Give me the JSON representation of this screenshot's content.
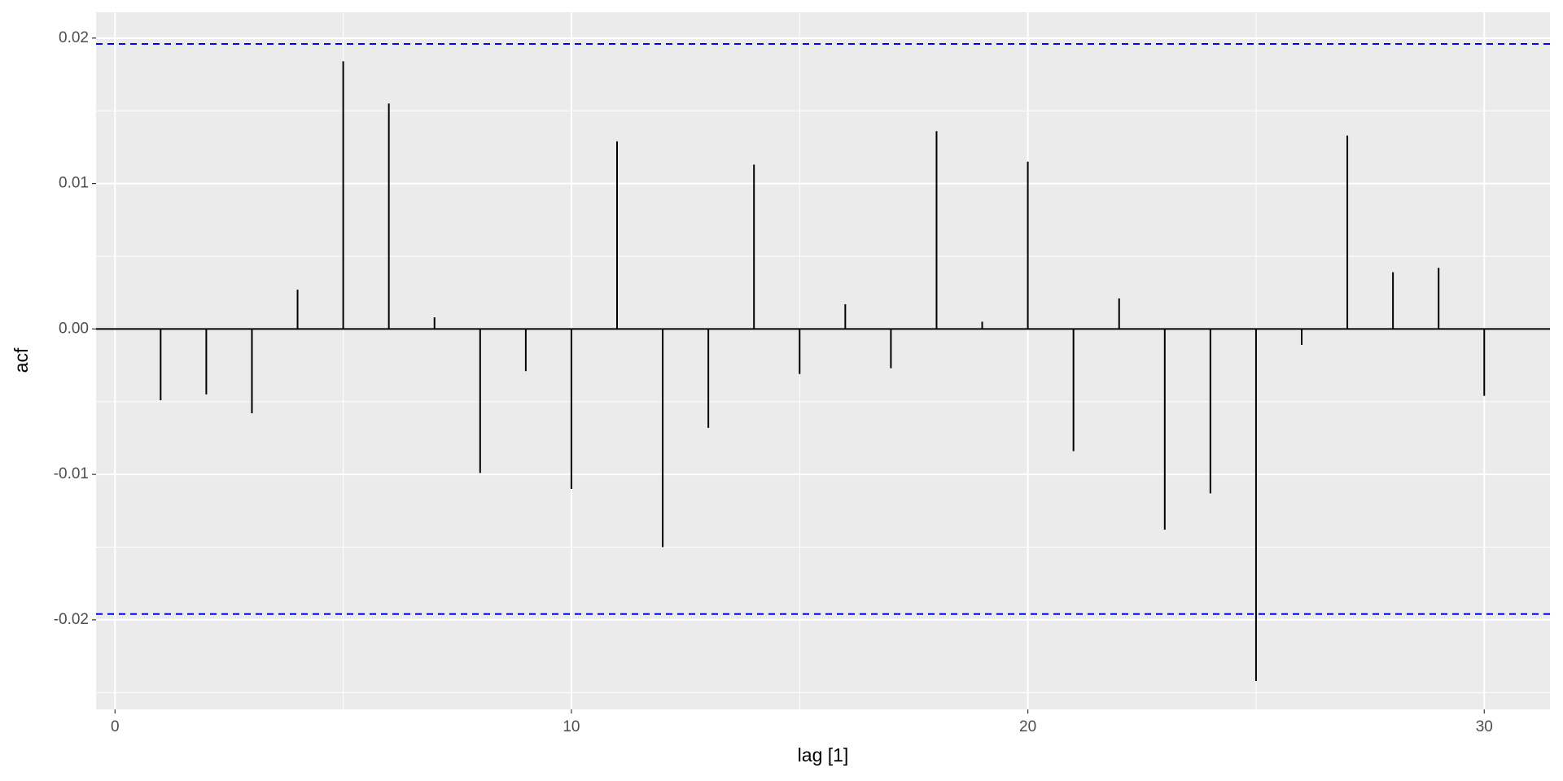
{
  "chart_data": {
    "type": "acf",
    "x_label": "lag [1]",
    "y_label": "acf",
    "x": [
      1,
      2,
      3,
      4,
      5,
      6,
      7,
      8,
      9,
      10,
      11,
      12,
      13,
      14,
      15,
      16,
      17,
      18,
      19,
      20,
      21,
      22,
      23,
      24,
      25,
      26,
      27,
      28,
      29,
      30
    ],
    "values": [
      -0.0049,
      -0.0045,
      -0.0058,
      0.0027,
      0.0184,
      0.0155,
      0.0008,
      -0.0099,
      -0.0029,
      -0.011,
      0.0129,
      -0.015,
      -0.0068,
      0.0113,
      -0.0031,
      0.0017,
      -0.0027,
      0.0136,
      0.0005,
      0.0115,
      -0.0084,
      0.0021,
      -0.0138,
      -0.0113,
      -0.0242,
      -0.0011,
      0.0133,
      0.0039,
      0.0042,
      -0.0046
    ],
    "color": "#000000",
    "ci_bounds": [
      -0.0196,
      0.0196
    ],
    "ci_color": "#0000ff",
    "hline": 0,
    "xlim": [
      -0.415,
      31.44
    ],
    "ylim": [
      -0.02616,
      0.02178
    ],
    "xticks": [
      0,
      10,
      20,
      30
    ],
    "xminor": [
      5,
      15,
      25
    ],
    "yticks": [
      -0.02,
      -0.01,
      {
        "value": 0,
        "label": "0.00"
      },
      0.01,
      0.02
    ],
    "yminor": [
      -0.025,
      -0.015,
      -0.005,
      0.005,
      0.015
    ],
    "grid": true
  }
}
